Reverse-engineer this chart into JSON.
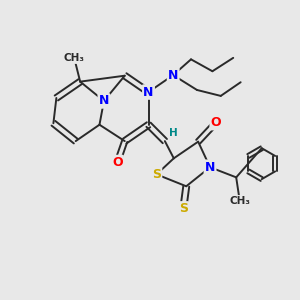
{
  "bg_color": "#e8e8e8",
  "bond_color": "#2a2a2a",
  "atom_colors": {
    "N": "#0000ff",
    "O": "#ff0000",
    "S": "#ccaa00",
    "H": "#008888",
    "C": "#2a2a2a"
  },
  "font_size_atom": 9,
  "font_size_small": 7.5
}
